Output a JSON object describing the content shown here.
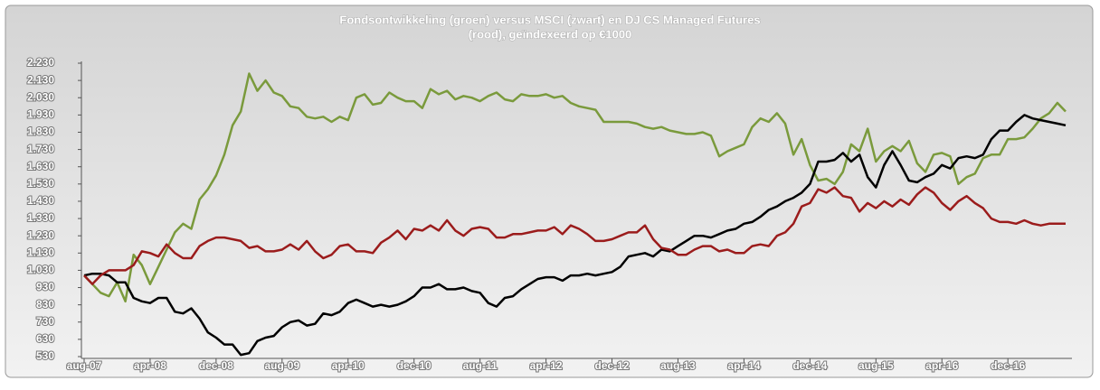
{
  "chart_data": {
    "type": "line",
    "title": [
      "Fondsontwikkeling (groen) versus MSCI (zwart) en DJ CS Managed Futures",
      "(rood), geïndexeerd op €1000"
    ],
    "categories": [
      "aug-07",
      null,
      null,
      null,
      null,
      null,
      null,
      null,
      "apr-08",
      null,
      null,
      null,
      null,
      null,
      null,
      null,
      "dec-08",
      null,
      null,
      null,
      null,
      null,
      null,
      null,
      "aug-09",
      null,
      null,
      null,
      null,
      null,
      null,
      null,
      "apr-10",
      null,
      null,
      null,
      null,
      null,
      null,
      null,
      "dec-10",
      null,
      null,
      null,
      null,
      null,
      null,
      null,
      "aug-11",
      null,
      null,
      null,
      null,
      null,
      null,
      null,
      "apr-12",
      null,
      null,
      null,
      null,
      null,
      null,
      null,
      "dec-12",
      null,
      null,
      null,
      null,
      null,
      null,
      null,
      "aug-13",
      null,
      null,
      null,
      null,
      null,
      null,
      null,
      "apr-14",
      null,
      null,
      null,
      null,
      null,
      null,
      null,
      "dec-14",
      null,
      null,
      null,
      null,
      null,
      null,
      null,
      "aug-15",
      null,
      null,
      null,
      null,
      null,
      null,
      null,
      "apr-16",
      null,
      null,
      null,
      null,
      null,
      null,
      null,
      "dec-16",
      null,
      null,
      null,
      null,
      null,
      null,
      null
    ],
    "series": [
      {
        "name": "Fonds",
        "color": "#7a9a3c",
        "values": [
          1000,
          950,
          900,
          880,
          960,
          850,
          1120,
          1060,
          950,
          1050,
          1150,
          1250,
          1300,
          1270,
          1440,
          1500,
          1580,
          1700,
          1870,
          1950,
          2170,
          2070,
          2130,
          2060,
          2040,
          1980,
          1970,
          1920,
          1910,
          1920,
          1890,
          1920,
          1900,
          2030,
          2050,
          1990,
          2000,
          2060,
          2030,
          2010,
          2010,
          1970,
          2080,
          2050,
          2070,
          2020,
          2040,
          2030,
          2010,
          2040,
          2060,
          2020,
          2010,
          2050,
          2040,
          2040,
          2050,
          2030,
          2040,
          2000,
          1980,
          1970,
          1960,
          1890,
          1890,
          1890,
          1890,
          1880,
          1860,
          1850,
          1860,
          1840,
          1830,
          1820,
          1820,
          1830,
          1810,
          1690,
          1720,
          1740,
          1760,
          1860,
          1910,
          1890,
          1940,
          1880,
          1700,
          1790,
          1640,
          1550,
          1560,
          1530,
          1600,
          1760,
          1720,
          1850,
          1660,
          1720,
          1750,
          1720,
          1780,
          1650,
          1600,
          1700,
          1710,
          1690,
          1530,
          1570,
          1590,
          1680,
          1700,
          1700,
          1790,
          1790,
          1800,
          1850,
          1910,
          1940,
          2000,
          1950
        ]
      },
      {
        "name": "MSCI",
        "color": "#000000",
        "values": [
          1000,
          1010,
          1010,
          1000,
          960,
          960,
          870,
          850,
          840,
          870,
          870,
          790,
          780,
          810,
          750,
          670,
          640,
          600,
          600,
          540,
          550,
          620,
          640,
          650,
          700,
          730,
          740,
          710,
          720,
          780,
          770,
          790,
          840,
          860,
          840,
          820,
          830,
          820,
          830,
          850,
          880,
          930,
          930,
          950,
          920,
          920,
          930,
          910,
          900,
          840,
          820,
          870,
          880,
          920,
          950,
          980,
          990,
          990,
          970,
          1000,
          1000,
          1010,
          1000,
          1010,
          1020,
          1050,
          1110,
          1120,
          1130,
          1110,
          1150,
          1140,
          1170,
          1200,
          1230,
          1230,
          1220,
          1240,
          1260,
          1270,
          1300,
          1310,
          1340,
          1380,
          1400,
          1430,
          1450,
          1480,
          1530,
          1660,
          1660,
          1670,
          1710,
          1660,
          1700,
          1570,
          1510,
          1640,
          1720,
          1640,
          1550,
          1540,
          1570,
          1590,
          1640,
          1620,
          1680,
          1690,
          1680,
          1700,
          1790,
          1840,
          1840,
          1890,
          1930,
          1910,
          1900,
          1890,
          1880,
          1870
        ]
      },
      {
        "name": "DJ CS Managed Futures",
        "color": "#9b1c1c",
        "values": [
          1000,
          950,
          1000,
          1030,
          1030,
          1030,
          1060,
          1140,
          1130,
          1110,
          1180,
          1130,
          1100,
          1100,
          1170,
          1200,
          1220,
          1220,
          1210,
          1200,
          1160,
          1170,
          1140,
          1140,
          1150,
          1180,
          1150,
          1200,
          1140,
          1100,
          1120,
          1170,
          1180,
          1140,
          1140,
          1130,
          1190,
          1220,
          1260,
          1210,
          1270,
          1260,
          1290,
          1260,
          1320,
          1260,
          1230,
          1270,
          1280,
          1270,
          1220,
          1220,
          1240,
          1240,
          1250,
          1260,
          1260,
          1280,
          1240,
          1290,
          1270,
          1240,
          1200,
          1200,
          1210,
          1230,
          1250,
          1250,
          1290,
          1210,
          1160,
          1150,
          1120,
          1120,
          1150,
          1170,
          1170,
          1140,
          1150,
          1130,
          1130,
          1170,
          1180,
          1170,
          1230,
          1250,
          1300,
          1400,
          1420,
          1500,
          1480,
          1510,
          1460,
          1450,
          1370,
          1420,
          1390,
          1430,
          1400,
          1440,
          1410,
          1470,
          1510,
          1480,
          1420,
          1380,
          1430,
          1460,
          1420,
          1390,
          1330,
          1310,
          1310,
          1300,
          1320,
          1300,
          1290,
          1300,
          1300,
          1300
        ]
      }
    ],
    "ylim": [
      530,
      2230
    ],
    "yticks": [
      {
        "value": 530,
        "label": "530"
      },
      {
        "value": 630,
        "label": "630"
      },
      {
        "value": 730,
        "label": "730"
      },
      {
        "value": 830,
        "label": "830"
      },
      {
        "value": 930,
        "label": "930"
      },
      {
        "value": 1030,
        "label": "1.030"
      },
      {
        "value": 1130,
        "label": "1.130"
      },
      {
        "value": 1230,
        "label": "1.230"
      },
      {
        "value": 1330,
        "label": "1.330"
      },
      {
        "value": 1430,
        "label": "1.430"
      },
      {
        "value": 1530,
        "label": "1.530"
      },
      {
        "value": 1630,
        "label": "1.630"
      },
      {
        "value": 1730,
        "label": "1.730"
      },
      {
        "value": 1830,
        "label": "1.830"
      },
      {
        "value": 1930,
        "label": "1.930"
      },
      {
        "value": 2030,
        "label": "2.030"
      },
      {
        "value": 2130,
        "label": "2.130"
      },
      {
        "value": 2230,
        "label": "2.230"
      }
    ],
    "grid": false
  }
}
